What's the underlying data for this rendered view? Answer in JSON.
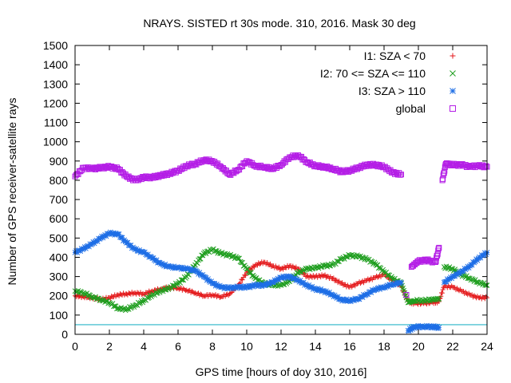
{
  "chart_data": {
    "type": "scatter",
    "title": "NRAYS. SISTED rt 30s mode. 310, 2016. Mask 30 deg",
    "xlabel": "GPS time [hours of doy 310, 2016]",
    "ylabel": "Number of GPS receiver-satellite rays",
    "xlim": [
      0,
      24
    ],
    "ylim": [
      0,
      1500
    ],
    "xticks": [
      0,
      2,
      4,
      6,
      8,
      10,
      12,
      14,
      16,
      18,
      20,
      22,
      24
    ],
    "yticks": [
      0,
      100,
      200,
      300,
      400,
      500,
      600,
      700,
      800,
      900,
      1000,
      1100,
      1200,
      1300,
      1400,
      1500
    ],
    "legend_position": "top-right",
    "reference_line": {
      "y": 50,
      "color": "#28b4c8"
    },
    "series": [
      {
        "name": "I1: SZA < 70",
        "marker": "plus",
        "color": "#e41a1c",
        "points": [
          [
            0,
            200
          ],
          [
            0.5,
            195
          ],
          [
            1,
            190
          ],
          [
            1.5,
            180
          ],
          [
            2,
            190
          ],
          [
            2.5,
            205
          ],
          [
            3,
            210
          ],
          [
            3.5,
            215
          ],
          [
            4,
            210
          ],
          [
            4.5,
            225
          ],
          [
            5,
            235
          ],
          [
            5.5,
            245
          ],
          [
            6,
            240
          ],
          [
            6.5,
            230
          ],
          [
            7,
            215
          ],
          [
            7.5,
            200
          ],
          [
            8,
            205
          ],
          [
            8.5,
            195
          ],
          [
            9,
            210
          ],
          [
            9.5,
            255
          ],
          [
            10,
            320
          ],
          [
            10.5,
            360
          ],
          [
            11,
            375
          ],
          [
            11.5,
            355
          ],
          [
            12,
            340
          ],
          [
            12.5,
            355
          ],
          [
            13,
            340
          ],
          [
            13.5,
            300
          ],
          [
            14,
            300
          ],
          [
            14.5,
            305
          ],
          [
            15,
            290
          ],
          [
            15.5,
            265
          ],
          [
            16,
            245
          ],
          [
            16.5,
            265
          ],
          [
            17,
            280
          ],
          [
            17.5,
            295
          ],
          [
            18,
            310
          ],
          [
            18.5,
            280
          ],
          [
            19,
            250
          ],
          [
            19.4,
            170
          ],
          [
            19.8,
            160
          ],
          [
            20.3,
            160
          ],
          [
            20.8,
            165
          ],
          [
            21.2,
            170
          ],
          [
            21.5,
            250
          ],
          [
            22,
            245
          ],
          [
            22.5,
            225
          ],
          [
            23,
            205
          ],
          [
            23.5,
            190
          ],
          [
            24,
            190
          ]
        ]
      },
      {
        "name": "I2: 70 <= SZA <= 110",
        "marker": "cross",
        "color": "#1f9e1f",
        "points": [
          [
            0,
            225
          ],
          [
            0.5,
            215
          ],
          [
            1,
            195
          ],
          [
            1.5,
            180
          ],
          [
            2,
            165
          ],
          [
            2.5,
            135
          ],
          [
            3,
            130
          ],
          [
            3.5,
            150
          ],
          [
            4,
            175
          ],
          [
            4.5,
            205
          ],
          [
            5,
            225
          ],
          [
            5.5,
            240
          ],
          [
            6,
            265
          ],
          [
            6.5,
            300
          ],
          [
            7,
            360
          ],
          [
            7.5,
            420
          ],
          [
            8,
            440
          ],
          [
            8.5,
            420
          ],
          [
            9,
            410
          ],
          [
            9.5,
            395
          ],
          [
            10,
            340
          ],
          [
            10.5,
            290
          ],
          [
            11,
            265
          ],
          [
            11.5,
            255
          ],
          [
            12,
            255
          ],
          [
            12.5,
            275
          ],
          [
            13,
            320
          ],
          [
            13.5,
            340
          ],
          [
            14,
            345
          ],
          [
            14.5,
            355
          ],
          [
            15,
            360
          ],
          [
            15.5,
            390
          ],
          [
            16,
            410
          ],
          [
            16.5,
            405
          ],
          [
            17,
            390
          ],
          [
            17.5,
            365
          ],
          [
            18,
            325
          ],
          [
            18.5,
            290
          ],
          [
            19,
            265
          ],
          [
            19.4,
            165
          ],
          [
            19.8,
            175
          ],
          [
            20.3,
            175
          ],
          [
            20.8,
            180
          ],
          [
            21.2,
            185
          ],
          [
            21.5,
            350
          ],
          [
            22,
            340
          ],
          [
            22.5,
            310
          ],
          [
            23,
            290
          ],
          [
            23.5,
            270
          ],
          [
            24,
            255
          ]
        ]
      },
      {
        "name": "I3: SZA > 110",
        "marker": "star",
        "color": "#1e6ee6",
        "points": [
          [
            0,
            425
          ],
          [
            0.5,
            445
          ],
          [
            1,
            470
          ],
          [
            1.5,
            500
          ],
          [
            2,
            525
          ],
          [
            2.5,
            520
          ],
          [
            3,
            475
          ],
          [
            3.5,
            440
          ],
          [
            4,
            425
          ],
          [
            4.5,
            395
          ],
          [
            5,
            365
          ],
          [
            5.5,
            350
          ],
          [
            6,
            345
          ],
          [
            6.5,
            340
          ],
          [
            7,
            330
          ],
          [
            7.5,
            300
          ],
          [
            8,
            265
          ],
          [
            8.5,
            245
          ],
          [
            9,
            240
          ],
          [
            9.5,
            245
          ],
          [
            10,
            245
          ],
          [
            10.5,
            255
          ],
          [
            11,
            255
          ],
          [
            11.5,
            270
          ],
          [
            12,
            295
          ],
          [
            12.5,
            300
          ],
          [
            13,
            280
          ],
          [
            13.5,
            255
          ],
          [
            14,
            235
          ],
          [
            14.5,
            225
          ],
          [
            15,
            205
          ],
          [
            15.5,
            180
          ],
          [
            16,
            175
          ],
          [
            16.5,
            185
          ],
          [
            17,
            210
          ],
          [
            17.5,
            235
          ],
          [
            18,
            245
          ],
          [
            18.5,
            260
          ],
          [
            19,
            270
          ],
          [
            19.4,
            20
          ],
          [
            19.8,
            40
          ],
          [
            20.3,
            40
          ],
          [
            20.8,
            40
          ],
          [
            21.2,
            35
          ],
          [
            21.5,
            270
          ],
          [
            22,
            300
          ],
          [
            22.5,
            325
          ],
          [
            23,
            355
          ],
          [
            23.5,
            395
          ],
          [
            24,
            425
          ]
        ]
      },
      {
        "name": "global",
        "marker": "square",
        "color": "#b41ee6",
        "points": [
          [
            0,
            820
          ],
          [
            0.5,
            865
          ],
          [
            1,
            860
          ],
          [
            1.5,
            865
          ],
          [
            2,
            870
          ],
          [
            2.5,
            860
          ],
          [
            3,
            820
          ],
          [
            3.5,
            800
          ],
          [
            4,
            815
          ],
          [
            4.5,
            815
          ],
          [
            5,
            825
          ],
          [
            5.5,
            835
          ],
          [
            6,
            850
          ],
          [
            6.5,
            875
          ],
          [
            7,
            885
          ],
          [
            7.5,
            905
          ],
          [
            8,
            900
          ],
          [
            8.5,
            870
          ],
          [
            9,
            830
          ],
          [
            9.5,
            855
          ],
          [
            10,
            900
          ],
          [
            10.5,
            875
          ],
          [
            11,
            870
          ],
          [
            11.5,
            860
          ],
          [
            12,
            880
          ],
          [
            12.5,
            920
          ],
          [
            13,
            930
          ],
          [
            13.5,
            895
          ],
          [
            14,
            875
          ],
          [
            14.5,
            870
          ],
          [
            15,
            860
          ],
          [
            15.5,
            845
          ],
          [
            16,
            850
          ],
          [
            16.5,
            865
          ],
          [
            17,
            880
          ],
          [
            17.5,
            880
          ],
          [
            18,
            870
          ],
          [
            18.5,
            840
          ],
          [
            19,
            830
          ],
          [
            19.3,
            205
          ],
          [
            19.6,
            350
          ],
          [
            20,
            380
          ],
          [
            20.5,
            385
          ],
          [
            21,
            375
          ],
          [
            21.2,
            450
          ],
          [
            21.4,
            800
          ],
          [
            21.6,
            885
          ],
          [
            22,
            880
          ],
          [
            22.5,
            880
          ],
          [
            23,
            870
          ],
          [
            23.5,
            875
          ],
          [
            24,
            870
          ]
        ]
      }
    ]
  }
}
